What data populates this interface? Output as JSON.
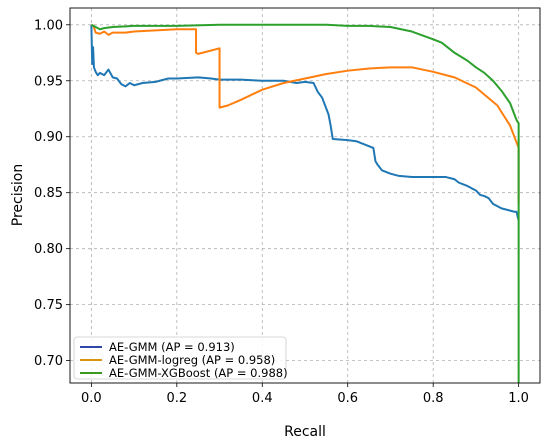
{
  "chart_data": {
    "type": "line",
    "title": "",
    "xlabel": "Recall",
    "ylabel": "Precision",
    "xlim": [
      -0.05,
      1.05
    ],
    "ylim": [
      0.68,
      1.015
    ],
    "grid": true,
    "legend_position": "lower-left",
    "xticks": [
      0.0,
      0.2,
      0.4,
      0.6,
      0.8,
      1.0
    ],
    "xtick_labels": [
      "0.0",
      "0.2",
      "0.4",
      "0.6",
      "0.8",
      "1.0"
    ],
    "yticks": [
      0.7,
      0.75,
      0.8,
      0.85,
      0.9,
      0.95,
      1.0
    ],
    "ytick_labels": [
      "0.70",
      "0.75",
      "0.80",
      "0.85",
      "0.90",
      "0.95",
      "1.00"
    ],
    "series": [
      {
        "name": "AE-GMM (AP = 0.913)",
        "color": "#1f77b4",
        "legend_color": "#3047a8",
        "points": [
          [
            0.0,
            1.0
          ],
          [
            0.002,
            0.965
          ],
          [
            0.004,
            0.98
          ],
          [
            0.006,
            0.962
          ],
          [
            0.01,
            0.958
          ],
          [
            0.015,
            0.955
          ],
          [
            0.02,
            0.957
          ],
          [
            0.03,
            0.955
          ],
          [
            0.04,
            0.96
          ],
          [
            0.05,
            0.953
          ],
          [
            0.06,
            0.952
          ],
          [
            0.07,
            0.947
          ],
          [
            0.08,
            0.945
          ],
          [
            0.09,
            0.948
          ],
          [
            0.1,
            0.946
          ],
          [
            0.12,
            0.948
          ],
          [
            0.15,
            0.949
          ],
          [
            0.18,
            0.952
          ],
          [
            0.2,
            0.952
          ],
          [
            0.25,
            0.953
          ],
          [
            0.28,
            0.952
          ],
          [
            0.3,
            0.951
          ],
          [
            0.35,
            0.951
          ],
          [
            0.4,
            0.95
          ],
          [
            0.45,
            0.95
          ],
          [
            0.48,
            0.948
          ],
          [
            0.5,
            0.949
          ],
          [
            0.52,
            0.948
          ],
          [
            0.53,
            0.94
          ],
          [
            0.54,
            0.935
          ],
          [
            0.55,
            0.925
          ],
          [
            0.555,
            0.92
          ],
          [
            0.56,
            0.91
          ],
          [
            0.565,
            0.898
          ],
          [
            0.6,
            0.897
          ],
          [
            0.62,
            0.896
          ],
          [
            0.64,
            0.893
          ],
          [
            0.66,
            0.89
          ],
          [
            0.665,
            0.878
          ],
          [
            0.67,
            0.875
          ],
          [
            0.68,
            0.87
          ],
          [
            0.7,
            0.867
          ],
          [
            0.72,
            0.865
          ],
          [
            0.75,
            0.864
          ],
          [
            0.8,
            0.864
          ],
          [
            0.83,
            0.864
          ],
          [
            0.85,
            0.862
          ],
          [
            0.86,
            0.859
          ],
          [
            0.88,
            0.856
          ],
          [
            0.9,
            0.852
          ],
          [
            0.91,
            0.848
          ],
          [
            0.92,
            0.847
          ],
          [
            0.93,
            0.845
          ],
          [
            0.94,
            0.84
          ],
          [
            0.95,
            0.838
          ],
          [
            0.96,
            0.836
          ],
          [
            0.97,
            0.835
          ],
          [
            0.98,
            0.834
          ],
          [
            0.99,
            0.833
          ],
          [
            0.995,
            0.833
          ],
          [
            1.0,
            0.825
          ]
        ]
      },
      {
        "name": "AE-GMM-logreg (AP = 0.958)",
        "color": "#ff7f0e",
        "legend_color": "#d8960e",
        "points": [
          [
            0.0,
            1.0
          ],
          [
            0.005,
            0.999
          ],
          [
            0.01,
            0.993
          ],
          [
            0.02,
            0.992
          ],
          [
            0.03,
            0.994
          ],
          [
            0.04,
            0.991
          ],
          [
            0.05,
            0.993
          ],
          [
            0.08,
            0.993
          ],
          [
            0.1,
            0.994
          ],
          [
            0.15,
            0.995
          ],
          [
            0.2,
            0.996
          ],
          [
            0.245,
            0.996
          ],
          [
            0.245,
            0.975
          ],
          [
            0.25,
            0.974
          ],
          [
            0.3,
            0.979
          ],
          [
            0.3,
            0.926
          ],
          [
            0.32,
            0.928
          ],
          [
            0.35,
            0.933
          ],
          [
            0.4,
            0.942
          ],
          [
            0.45,
            0.948
          ],
          [
            0.5,
            0.952
          ],
          [
            0.55,
            0.956
          ],
          [
            0.6,
            0.959
          ],
          [
            0.65,
            0.961
          ],
          [
            0.7,
            0.962
          ],
          [
            0.75,
            0.962
          ],
          [
            0.8,
            0.958
          ],
          [
            0.85,
            0.953
          ],
          [
            0.9,
            0.944
          ],
          [
            0.95,
            0.928
          ],
          [
            0.98,
            0.91
          ],
          [
            0.995,
            0.895
          ],
          [
            1.0,
            0.89
          ],
          [
            1.0,
            0.84
          ]
        ]
      },
      {
        "name": "AE-GMM-XGBoost (AP = 0.988)",
        "color": "#2ca02c",
        "legend_color": "#3c9a22",
        "points": [
          [
            0.0,
            1.0
          ],
          [
            0.01,
            0.998
          ],
          [
            0.02,
            0.996
          ],
          [
            0.03,
            0.997
          ],
          [
            0.05,
            0.998
          ],
          [
            0.1,
            0.999
          ],
          [
            0.2,
            0.999
          ],
          [
            0.3,
            1.0
          ],
          [
            0.4,
            1.0
          ],
          [
            0.5,
            1.0
          ],
          [
            0.55,
            1.0
          ],
          [
            0.6,
            0.999
          ],
          [
            0.65,
            0.999
          ],
          [
            0.7,
            0.998
          ],
          [
            0.75,
            0.994
          ],
          [
            0.8,
            0.987
          ],
          [
            0.82,
            0.984
          ],
          [
            0.85,
            0.975
          ],
          [
            0.88,
            0.968
          ],
          [
            0.9,
            0.962
          ],
          [
            0.92,
            0.957
          ],
          [
            0.94,
            0.95
          ],
          [
            0.96,
            0.941
          ],
          [
            0.98,
            0.93
          ],
          [
            0.99,
            0.92
          ],
          [
            0.995,
            0.915
          ],
          [
            1.0,
            0.912
          ],
          [
            1.0,
            0.68
          ]
        ]
      }
    ]
  }
}
